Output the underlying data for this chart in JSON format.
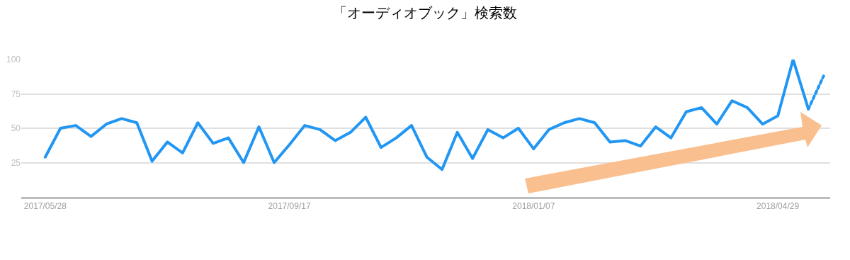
{
  "chart_data": {
    "type": "line",
    "title": "「オーディオブック」検索数",
    "series": [
      {
        "color": "#2196f3",
        "line_style": "solid",
        "x": [
          "2017-05-28",
          "2017-06-04",
          "2017-06-11",
          "2017-06-18",
          "2017-06-25",
          "2017-07-02",
          "2017-07-09",
          "2017-07-16",
          "2017-07-23",
          "2017-07-30",
          "2017-08-06",
          "2017-08-13",
          "2017-08-20",
          "2017-08-27",
          "2017-09-03",
          "2017-09-10",
          "2017-09-17",
          "2017-09-24",
          "2017-10-01",
          "2017-10-08",
          "2017-10-15",
          "2017-10-22",
          "2017-10-29",
          "2017-11-05",
          "2017-11-12",
          "2017-11-19",
          "2017-11-26",
          "2017-12-03",
          "2017-12-10",
          "2017-12-17",
          "2017-12-24",
          "2017-12-31",
          "2018-01-07",
          "2018-01-14",
          "2018-01-21",
          "2018-01-28",
          "2018-02-04",
          "2018-02-11",
          "2018-02-18",
          "2018-02-25",
          "2018-03-04",
          "2018-03-11",
          "2018-03-18",
          "2018-03-25",
          "2018-04-01",
          "2018-04-08",
          "2018-04-15",
          "2018-04-22",
          "2018-04-29",
          "2018-05-06",
          "2018-05-13"
        ],
        "values": [
          29,
          50,
          52,
          44,
          53,
          57,
          54,
          26,
          40,
          32,
          54,
          39,
          43,
          25,
          51,
          25,
          38,
          52,
          49,
          41,
          47,
          58,
          36,
          43,
          52,
          29,
          20,
          47,
          28,
          49,
          43,
          50,
          35,
          49,
          54,
          57,
          54,
          40,
          41,
          37,
          51,
          43,
          62,
          65,
          53,
          70,
          65,
          53,
          59,
          100,
          64
        ]
      },
      {
        "color": "#2196f3",
        "line_style": "dotted",
        "x": [
          "2018-05-13",
          "2018-05-20"
        ],
        "values": [
          64,
          88
        ]
      }
    ],
    "xlim": [
      "2017-05-17",
      "2018-05-23"
    ],
    "xticks": [
      {
        "value": "2017-05-28",
        "label": "2017/05/28"
      },
      {
        "value": "2017-09-17",
        "label": "2017/09/17"
      },
      {
        "value": "2018-01-07",
        "label": "2018/01/07"
      },
      {
        "value": "2018-04-29",
        "label": "2018/04/29"
      }
    ],
    "ylim": [
      0,
      100
    ],
    "yticks": [
      25,
      50,
      75,
      100
    ],
    "grid": "y",
    "marker": "none"
  }
}
